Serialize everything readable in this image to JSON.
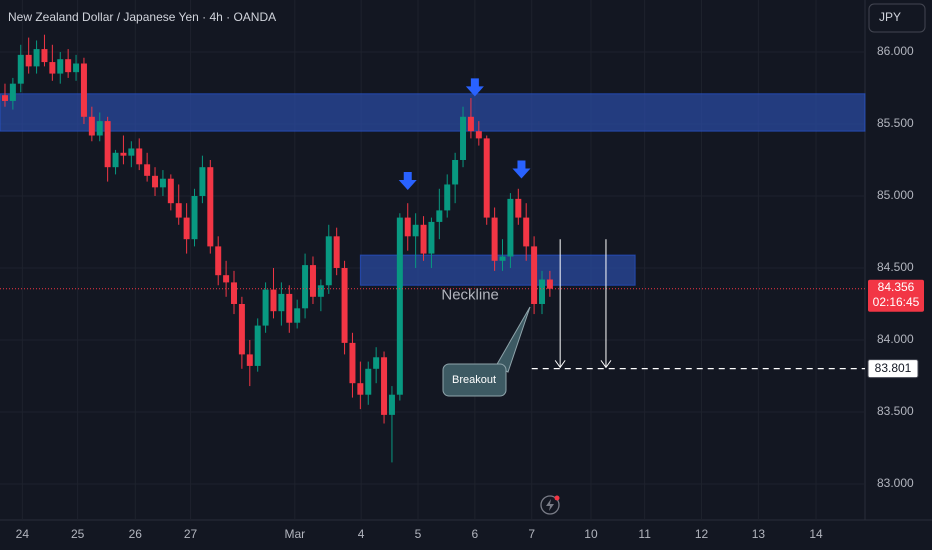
{
  "chart_data": {
    "type": "candlestick",
    "title": "New Zealand Dollar / Japanese Yen · 4h · OANDA",
    "currency_button": "JPY",
    "up_color": "#089981",
    "down_color": "#f23645",
    "zone_color": "#2a4a9f",
    "arrow_color": "#2962ff",
    "grid": true,
    "open": [
      85.7,
      85.66,
      85.78,
      85.98,
      85.9,
      86.02,
      85.93,
      85.85,
      85.95,
      85.86,
      85.92,
      85.55,
      85.42,
      85.52,
      85.2,
      85.3,
      85.28,
      85.33,
      85.22,
      85.14,
      85.06,
      85.12,
      84.95,
      84.85,
      84.7,
      85.0,
      85.2,
      84.65,
      84.45,
      84.4,
      84.25,
      83.9,
      83.82,
      84.1,
      84.35,
      84.2,
      84.32,
      84.12,
      84.22,
      84.52,
      84.3,
      84.38,
      84.72,
      84.5,
      83.98,
      83.7,
      83.62,
      83.8,
      83.88,
      83.48,
      83.62,
      84.85,
      84.72,
      84.8,
      84.6,
      84.82,
      84.9,
      85.08,
      85.25,
      85.55,
      85.45,
      85.4,
      84.85,
      84.55,
      84.58,
      84.98,
      84.85,
      84.65,
      84.25,
      84.42
    ],
    "high": [
      85.78,
      85.82,
      86.05,
      86.1,
      86.08,
      86.12,
      86.05,
      86.0,
      86.02,
      85.98,
      85.96,
      85.62,
      85.58,
      85.55,
      85.32,
      85.42,
      85.38,
      85.4,
      85.3,
      85.2,
      85.18,
      85.15,
      85.08,
      84.95,
      85.05,
      85.28,
      85.25,
      84.72,
      84.55,
      84.48,
      84.3,
      84.0,
      84.15,
      84.4,
      84.5,
      84.4,
      84.38,
      84.28,
      84.6,
      84.58,
      84.42,
      84.8,
      84.78,
      84.55,
      84.05,
      83.85,
      83.85,
      83.95,
      83.92,
      83.68,
      84.88,
      84.95,
      84.88,
      84.86,
      84.85,
      85.05,
      85.15,
      85.3,
      85.62,
      85.68,
      85.52,
      85.42,
      84.92,
      84.7,
      85.02,
      85.05,
      84.95,
      84.72,
      84.48,
      84.48
    ],
    "low": [
      85.62,
      85.6,
      85.72,
      85.85,
      85.85,
      85.9,
      85.8,
      85.78,
      85.82,
      85.8,
      85.5,
      85.38,
      85.38,
      85.1,
      85.15,
      85.22,
      85.2,
      85.18,
      85.1,
      85.0,
      85.0,
      84.9,
      84.8,
      84.6,
      84.65,
      84.95,
      84.6,
      84.38,
      84.3,
      84.18,
      83.8,
      83.68,
      83.78,
      84.05,
      84.15,
      84.1,
      84.05,
      84.08,
      84.15,
      84.25,
      84.2,
      84.32,
      84.45,
      83.9,
      83.6,
      83.52,
      83.55,
      83.7,
      83.42,
      83.15,
      83.58,
      84.62,
      84.5,
      84.55,
      84.5,
      84.7,
      84.85,
      84.95,
      85.2,
      85.4,
      85.35,
      84.8,
      84.48,
      84.48,
      84.5,
      84.8,
      84.55,
      84.18,
      84.18,
      84.3
    ],
    "close": [
      85.66,
      85.78,
      85.98,
      85.9,
      86.02,
      85.93,
      85.85,
      85.95,
      85.86,
      85.92,
      85.55,
      85.42,
      85.52,
      85.2,
      85.3,
      85.28,
      85.33,
      85.22,
      85.14,
      85.06,
      85.12,
      84.95,
      84.85,
      84.7,
      85.0,
      85.2,
      84.65,
      84.45,
      84.4,
      84.25,
      83.9,
      83.82,
      84.1,
      84.35,
      84.2,
      84.32,
      84.12,
      84.22,
      84.52,
      84.3,
      84.38,
      84.72,
      84.5,
      83.98,
      83.7,
      83.62,
      83.8,
      83.88,
      83.48,
      83.62,
      84.85,
      84.72,
      84.8,
      84.6,
      84.82,
      84.9,
      85.08,
      85.25,
      85.55,
      85.45,
      85.4,
      84.85,
      84.55,
      84.58,
      84.98,
      84.85,
      84.65,
      84.25,
      84.42,
      84.356
    ],
    "xlim": [
      -0.63,
      108.9
    ],
    "ylim": [
      82.75,
      86.361
    ],
    "xticks": [
      {
        "value": 2.2,
        "label": "24"
      },
      {
        "value": 9.2,
        "label": "25"
      },
      {
        "value": 16.5,
        "label": "26"
      },
      {
        "value": 23.5,
        "label": "27"
      },
      {
        "value": 36.7,
        "label": "Mar"
      },
      {
        "value": 45.1,
        "label": "4"
      },
      {
        "value": 52.3,
        "label": "5"
      },
      {
        "value": 59.5,
        "label": "6"
      },
      {
        "value": 66.7,
        "label": "7"
      },
      {
        "value": 74.2,
        "label": "10"
      },
      {
        "value": 81.0,
        "label": "11"
      },
      {
        "value": 88.2,
        "label": "12"
      },
      {
        "value": 95.4,
        "label": "13"
      },
      {
        "value": 102.7,
        "label": "14"
      }
    ],
    "yticks": [
      {
        "value": 86,
        "label": "86.000"
      },
      {
        "value": 85.5,
        "label": "85.500"
      },
      {
        "value": 85,
        "label": "85.000"
      },
      {
        "value": 84.5,
        "label": "84.500"
      },
      {
        "value": 84,
        "label": "84.000"
      },
      {
        "value": 83.5,
        "label": "83.500"
      },
      {
        "value": 83,
        "label": "83.000"
      }
    ],
    "last_price": 84.356,
    "countdown": "02:16:45",
    "target": 83.801,
    "target_from": 66.7,
    "zones": [
      {
        "x": [
          -0.63,
          108.9
        ],
        "y": [
          85.45,
          85.71
        ]
      },
      {
        "x": [
          45.0,
          79.8
        ],
        "y": [
          84.38,
          84.59
        ]
      }
    ],
    "neckline_label": {
      "text": "Neckline",
      "x": 58.9,
      "y": 84.31
    },
    "peak_arrows": [
      {
        "x": 51.0,
        "y": 85.09
      },
      {
        "x": 59.5,
        "y": 85.74
      },
      {
        "x": 65.4,
        "y": 85.17
      }
    ],
    "target_arrows": [
      {
        "x": 70.3,
        "y": [
          84.7,
          83.81
        ]
      },
      {
        "x": 76.1,
        "y": [
          84.7,
          83.81
        ]
      }
    ],
    "breakout_label": "Breakout"
  }
}
